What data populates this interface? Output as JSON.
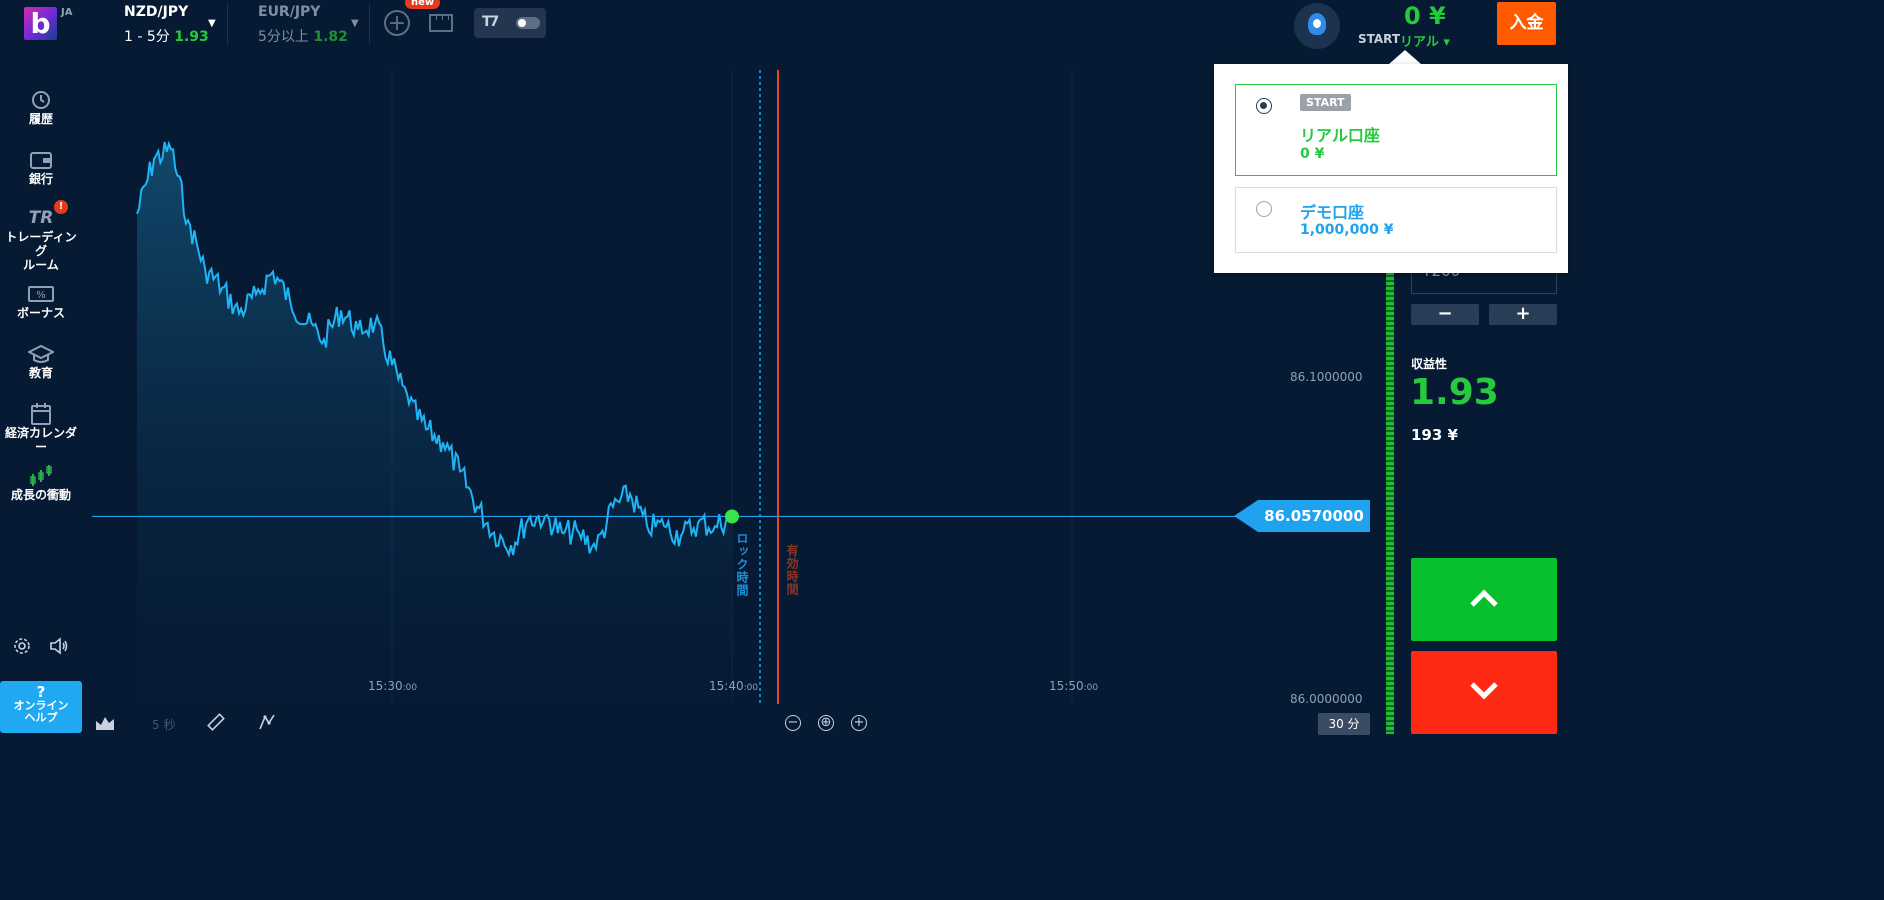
{
  "header": {
    "logo_letter": "b",
    "language": "JA",
    "assets": [
      {
        "name": "NZD/JPY",
        "duration": "1 - 5分",
        "payout": "1.93"
      },
      {
        "name": "EUR/JPY",
        "duration": "5分以上",
        "payout": "1.82"
      }
    ],
    "new_badge": "new",
    "balance": "0 ¥",
    "start_label": "START",
    "account_type": "リアル ▾",
    "deposit_label": "入金"
  },
  "sidebar": {
    "items": [
      {
        "label": "履歴",
        "icon": "history-icon"
      },
      {
        "label": "銀行",
        "icon": "wallet-icon"
      },
      {
        "label": "トレーディング\nルーム",
        "icon": "trading-room-icon",
        "alert": "!"
      },
      {
        "label": "ボーナス",
        "icon": "bonus-icon"
      },
      {
        "label": "教育",
        "icon": "graduation-cap-icon"
      },
      {
        "label": "経済カレンダー",
        "icon": "calendar-icon"
      },
      {
        "label": "成長の衝動",
        "icon": "growth-chart-icon"
      }
    ],
    "help": {
      "icon_text": "?",
      "label": "オンライン\nヘルプ"
    }
  },
  "chart": {
    "price_labels": [
      "86.1000000",
      "86.0000000"
    ],
    "time_labels": [
      {
        "main": "15:30",
        "sec": ":00"
      },
      {
        "main": "15:40",
        "sec": ":00"
      },
      {
        "main": "15:50",
        "sec": ":00"
      }
    ],
    "current_price": "86.0570000",
    "lock_label": "ロック時間",
    "expiry_label": "有効時間",
    "toolbar": {
      "candle_interval": "5 秒",
      "timeframe": "30 分"
    },
    "colors": {
      "line": "#1fb4f5",
      "lock_line": "#1fa3ef",
      "expiry_line": "#e4462a",
      "dot": "#39e34a"
    }
  },
  "chart_data": {
    "type": "area",
    "instrument": "NZD/JPY",
    "x_ticks": [
      "15:30:00",
      "15:40:00",
      "15:50:00"
    ],
    "y_ticks": [
      86.1,
      86.0
    ],
    "current_value": 86.057,
    "series": [
      {
        "x": [
          "15:22:30",
          "15:23:00",
          "15:23:30",
          "15:24:00",
          "15:24:30",
          "15:25:00",
          "15:25:30",
          "15:26:00",
          "15:26:30",
          "15:27:00",
          "15:27:30",
          "15:28:00",
          "15:28:30",
          "15:29:00",
          "15:29:30",
          "15:30:00",
          "15:30:30",
          "15:31:00",
          "15:31:30",
          "15:32:00",
          "15:32:30",
          "15:33:00",
          "15:33:30",
          "15:34:00",
          "15:34:30",
          "15:35:00",
          "15:35:30",
          "15:36:00",
          "15:36:30",
          "15:37:00",
          "15:37:30",
          "15:38:00",
          "15:38:30",
          "15:39:00",
          "15:39:30",
          "15:40:00"
        ],
        "values": [
          86.151,
          86.168,
          86.171,
          86.149,
          86.134,
          86.128,
          86.12,
          86.126,
          86.133,
          86.124,
          86.117,
          86.112,
          86.121,
          86.115,
          86.117,
          86.104,
          86.092,
          86.084,
          86.08,
          86.071,
          86.06,
          86.052,
          86.048,
          86.056,
          86.057,
          86.052,
          86.052,
          86.047,
          86.06,
          86.064,
          86.054,
          86.054,
          86.051,
          86.055,
          86.054,
          86.057
        ]
      }
    ],
    "grid": true
  },
  "trade_panel": {
    "amount_value": "¥200",
    "minus": "−",
    "plus": "+",
    "profit_label": "収益性",
    "profit_value": "1.93",
    "profit_amount": "193 ¥"
  },
  "account_dropdown": {
    "accounts": [
      {
        "badge": "START",
        "name": "リアル口座",
        "balance": "0 ¥",
        "selected": true
      },
      {
        "name": "デモ口座",
        "balance": "1,000,000 ¥",
        "selected": false
      }
    ]
  }
}
